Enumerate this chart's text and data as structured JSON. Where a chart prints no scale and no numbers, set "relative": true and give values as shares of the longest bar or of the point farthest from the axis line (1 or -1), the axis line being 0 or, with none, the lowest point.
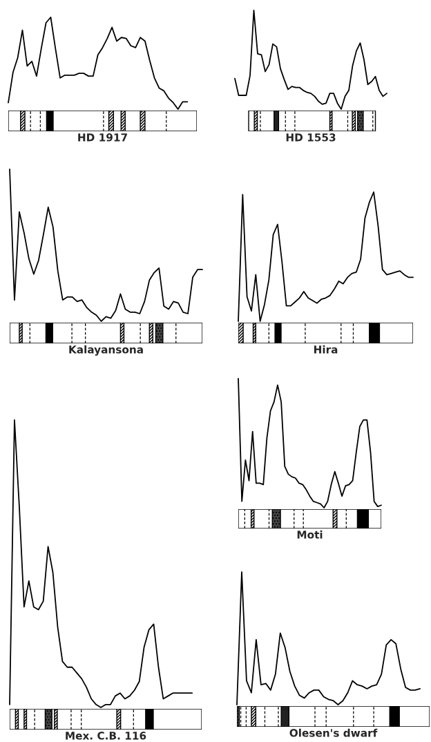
{
  "chart_data": [
    {
      "type": "line",
      "xlabel": "HD 1917",
      "relative": true,
      "color": "#000000",
      "categories": [
        null,
        null,
        null,
        null,
        null,
        null,
        null,
        null,
        null,
        null,
        null,
        null,
        null,
        null,
        null,
        null,
        null,
        null,
        null,
        null,
        null,
        null,
        null,
        null,
        null,
        null,
        null,
        null,
        null,
        null,
        null,
        null,
        null,
        null,
        null,
        null,
        null,
        null,
        null,
        null,
        null
      ],
      "values": [
        0.07,
        0.4,
        0.56,
        0.86,
        0.47,
        0.52,
        0.36,
        0.66,
        0.94,
        1.0,
        0.66,
        0.34,
        0.37,
        0.37,
        0.37,
        0.39,
        0.39,
        0.36,
        0.36,
        0.59,
        0.67,
        0.77,
        0.89,
        0.74,
        0.78,
        0.77,
        0.69,
        0.67,
        0.78,
        0.74,
        0.53,
        0.34,
        0.23,
        0.2,
        0.12,
        0.07,
        0,
        0.08,
        0.08,
        null,
        null
      ]
    },
    {
      "type": "line",
      "xlabel": "HD 1553",
      "relative": true,
      "color": "#000000",
      "categories": [
        null,
        null,
        null,
        null,
        null,
        null,
        null,
        null,
        null,
        null,
        null,
        null,
        null,
        null,
        null,
        null,
        null,
        null,
        null,
        null,
        null,
        null,
        null,
        null,
        null,
        null,
        null,
        null,
        null,
        null,
        null,
        null,
        null,
        null,
        null,
        null,
        null,
        null,
        null,
        null,
        null
      ],
      "values": [
        0.31,
        0.14,
        0.14,
        0.14,
        0.34,
        1.0,
        0.56,
        0.55,
        0.38,
        0.45,
        0.66,
        0.63,
        0.41,
        0.3,
        0.2,
        0.23,
        0.22,
        0.22,
        0.19,
        0.17,
        0.16,
        0.13,
        0.08,
        0.05,
        0.06,
        0.16,
        0.16,
        0.06,
        0,
        0.13,
        0.19,
        0.44,
        0.59,
        0.67,
        0.5,
        0.25,
        0.28,
        0.33,
        0.19,
        0.13,
        0.16
      ]
    },
    {
      "type": "line",
      "xlabel": "Kalayansona",
      "relative": true,
      "color": "#000000",
      "categories": [
        null,
        null,
        null,
        null,
        null,
        null,
        null,
        null,
        null,
        null,
        null,
        null,
        null,
        null,
        null,
        null,
        null,
        null,
        null,
        null,
        null,
        null,
        null,
        null,
        null,
        null,
        null,
        null,
        null,
        null,
        null,
        null,
        null,
        null,
        null,
        null,
        null,
        null,
        null,
        null,
        null
      ],
      "values": [
        1.0,
        0.14,
        0.72,
        0.58,
        0.41,
        0.31,
        0.4,
        0.57,
        0.75,
        0.62,
        0.33,
        0.14,
        0.16,
        0.16,
        0.13,
        0.14,
        0.09,
        0.06,
        0.04,
        0,
        0.03,
        0.02,
        0.07,
        0.18,
        0.08,
        0.06,
        0.06,
        0.05,
        0.13,
        0.27,
        0.32,
        0.35,
        0.1,
        0.08,
        0.13,
        0.12,
        0.06,
        0.05,
        0.29,
        0.34,
        0.34
      ]
    },
    {
      "type": "line",
      "xlabel": "Hira",
      "relative": true,
      "color": "#000000",
      "categories": [
        null,
        null,
        null,
        null,
        null,
        null,
        null,
        null,
        null,
        null,
        null,
        null,
        null,
        null,
        null,
        null,
        null,
        null,
        null,
        null,
        null,
        null,
        null,
        null,
        null,
        null,
        null,
        null,
        null,
        null,
        null,
        null,
        null,
        null,
        null,
        null,
        null,
        null,
        null,
        null,
        null
      ],
      "values": [
        0,
        0.98,
        0.19,
        0.08,
        0.36,
        0,
        0.13,
        0.32,
        0.67,
        0.75,
        0.46,
        0.12,
        0.12,
        0.15,
        0.18,
        0.23,
        0.18,
        0.16,
        0.14,
        0.17,
        0.18,
        0.2,
        0.25,
        0.31,
        0.29,
        0.34,
        0.37,
        0.38,
        0.48,
        0.8,
        0.92,
        1.0,
        0.74,
        0.4,
        0.36,
        0.37,
        0.38,
        0.39,
        0.36,
        0.34,
        0.34
      ]
    },
    {
      "type": "line",
      "xlabel": "Mex. C.B. 116",
      "relative": true,
      "color": "#000000",
      "categories": [
        null,
        null,
        null,
        null,
        null,
        null,
        null,
        null,
        null,
        null,
        null,
        null,
        null,
        null,
        null,
        null,
        null,
        null,
        null,
        null,
        null,
        null,
        null,
        null,
        null,
        null,
        null,
        null,
        null,
        null,
        null,
        null,
        null,
        null,
        null,
        null,
        null,
        null,
        null,
        null,
        null
      ],
      "values": [
        0.01,
        1.0,
        0.7,
        0.35,
        0.44,
        0.35,
        0.34,
        0.37,
        0.56,
        0.47,
        0.28,
        0.16,
        0.14,
        0.14,
        0.12,
        0.1,
        0.07,
        0.03,
        0.01,
        0,
        0.01,
        0.01,
        0.04,
        0.05,
        0.03,
        0.04,
        0.06,
        0.09,
        0.21,
        0.27,
        0.29,
        0.14,
        0.03,
        0.04,
        0.05,
        0.05,
        0.05,
        0.05,
        0.05,
        null,
        null
      ]
    },
    {
      "type": "line",
      "xlabel": "Moti",
      "relative": true,
      "color": "#000000",
      "categories": [
        null,
        null,
        null,
        null,
        null,
        null,
        null,
        null,
        null,
        null,
        null,
        null,
        null,
        null,
        null,
        null,
        null,
        null,
        null,
        null,
        null,
        null,
        null,
        null,
        null,
        null,
        null,
        null,
        null,
        null,
        null,
        null,
        null,
        null,
        null,
        null,
        null,
        null,
        null,
        null,
        null
      ],
      "values": [
        1.0,
        0.05,
        0.37,
        0.21,
        0.59,
        0.19,
        0.19,
        0.18,
        0.54,
        0.75,
        0.82,
        0.95,
        0.82,
        0.32,
        0.26,
        0.24,
        0.23,
        0.19,
        0.18,
        0.14,
        0.09,
        0.05,
        0.04,
        0.03,
        0,
        0.05,
        0.18,
        0.28,
        0.19,
        0.09,
        0.17,
        0.18,
        0.21,
        0.43,
        0.63,
        0.68,
        0.68,
        0.43,
        0.05,
        0.01,
        0.02
      ]
    },
    {
      "type": "line",
      "xlabel": "Olesen's dwarf",
      "relative": true,
      "color": "#000000",
      "categories": [
        null,
        null,
        null,
        null,
        null,
        null,
        null,
        null,
        null,
        null,
        null,
        null,
        null,
        null,
        null,
        null,
        null,
        null,
        null,
        null,
        null,
        null,
        null,
        null,
        null,
        null,
        null,
        null,
        null,
        null,
        null,
        null,
        null,
        null,
        null,
        null,
        null,
        null,
        null,
        null,
        null
      ],
      "values": [
        0,
        1.0,
        0.18,
        0.09,
        0.49,
        0.15,
        0.16,
        0.11,
        0.23,
        0.54,
        0.43,
        0.25,
        0.14,
        0.07,
        0.05,
        0.09,
        0.11,
        0.11,
        0.06,
        0.04,
        0.03,
        0,
        0.03,
        0.09,
        0.18,
        0.15,
        0.14,
        0.12,
        0.14,
        0.15,
        0.23,
        0.45,
        0.49,
        0.46,
        0.27,
        0.13,
        0.11,
        0.11,
        0.12,
        null,
        null
      ]
    }
  ]
}
